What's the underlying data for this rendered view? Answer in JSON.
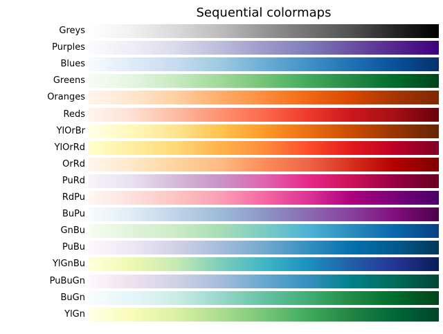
{
  "chart_data": {
    "type": "heatmap",
    "title": "Sequential colormaps",
    "colormaps": [
      {
        "name": "Greys",
        "colors": [
          "#ffffff",
          "#f0f0f0",
          "#d9d9d9",
          "#bdbdbd",
          "#969696",
          "#737373",
          "#525252",
          "#252525",
          "#000000"
        ]
      },
      {
        "name": "Purples",
        "colors": [
          "#fcfbfd",
          "#efedf5",
          "#dadaeb",
          "#bcbddc",
          "#9e9ac8",
          "#807dba",
          "#6a51a3",
          "#54278f",
          "#3f007d"
        ]
      },
      {
        "name": "Blues",
        "colors": [
          "#f7fbff",
          "#deebf7",
          "#c6dbef",
          "#9ecae1",
          "#6baed6",
          "#4292c6",
          "#2171b5",
          "#08519c",
          "#08306b"
        ]
      },
      {
        "name": "Greens",
        "colors": [
          "#f7fcf5",
          "#e5f5e0",
          "#c7e9c0",
          "#a1d99b",
          "#74c476",
          "#41ab5d",
          "#238b45",
          "#006d2c",
          "#00441b"
        ]
      },
      {
        "name": "Oranges",
        "colors": [
          "#fff5eb",
          "#fee6ce",
          "#fdd0a2",
          "#fdae6b",
          "#fd8d3c",
          "#f16913",
          "#d94801",
          "#a63603",
          "#7f2704"
        ]
      },
      {
        "name": "Reds",
        "colors": [
          "#fff5f0",
          "#fee0d2",
          "#fcbba1",
          "#fc9272",
          "#fb6a4a",
          "#ef3b2c",
          "#cb181d",
          "#a50f15",
          "#67000d"
        ]
      },
      {
        "name": "YlOrBr",
        "colors": [
          "#ffffe5",
          "#fff7bc",
          "#fee391",
          "#fec44f",
          "#fe9929",
          "#ec7014",
          "#cc4c02",
          "#993404",
          "#662506"
        ]
      },
      {
        "name": "YlOrRd",
        "colors": [
          "#ffffcc",
          "#ffeda0",
          "#fed976",
          "#feb24c",
          "#fd8d3c",
          "#fc4e2a",
          "#e31a1c",
          "#bd0026",
          "#800026"
        ]
      },
      {
        "name": "OrRd",
        "colors": [
          "#fff7ec",
          "#fee8c8",
          "#fdd49e",
          "#fdbb84",
          "#fc8d59",
          "#ef6548",
          "#d7301f",
          "#b30000",
          "#7f0000"
        ]
      },
      {
        "name": "PuRd",
        "colors": [
          "#f7f4f9",
          "#e7e1ef",
          "#d4b9da",
          "#c994c7",
          "#df65b0",
          "#e7298a",
          "#ce1256",
          "#980043",
          "#67001f"
        ]
      },
      {
        "name": "RdPu",
        "colors": [
          "#fff7f3",
          "#fde0dd",
          "#fcc5c0",
          "#fa9fb5",
          "#f768a1",
          "#dd3497",
          "#ae017e",
          "#7a0177",
          "#49006a"
        ]
      },
      {
        "name": "BuPu",
        "colors": [
          "#f7fcfd",
          "#e0ecf4",
          "#bfd3e6",
          "#9ebcda",
          "#8c96c6",
          "#8c6bb1",
          "#88419d",
          "#810f7c",
          "#4d004b"
        ]
      },
      {
        "name": "GnBu",
        "colors": [
          "#f7fcf0",
          "#e0f3db",
          "#ccebc5",
          "#a8ddb5",
          "#7bccc4",
          "#4eb3d3",
          "#2b8cbe",
          "#0868ac",
          "#084081"
        ]
      },
      {
        "name": "PuBu",
        "colors": [
          "#fff7fb",
          "#ece7f2",
          "#d0d1e6",
          "#a6bddb",
          "#74a9cf",
          "#3690c0",
          "#0570b0",
          "#045a8d",
          "#023858"
        ]
      },
      {
        "name": "YlGnBu",
        "colors": [
          "#ffffd9",
          "#edf8b1",
          "#c7e9b4",
          "#7fcdbb",
          "#41b6c4",
          "#1d91c0",
          "#225ea8",
          "#253494",
          "#081d58"
        ]
      },
      {
        "name": "PuBuGn",
        "colors": [
          "#fff7fb",
          "#ece2f0",
          "#d0d1e6",
          "#a6bddb",
          "#67a9cf",
          "#3690c0",
          "#02818a",
          "#016c59",
          "#014636"
        ]
      },
      {
        "name": "BuGn",
        "colors": [
          "#f7fcfd",
          "#e5f5f9",
          "#ccece6",
          "#99d8c9",
          "#66c2a4",
          "#41ae76",
          "#238b45",
          "#006d2c",
          "#00441b"
        ]
      },
      {
        "name": "YlGn",
        "colors": [
          "#ffffe5",
          "#f7fcb9",
          "#d9f0a3",
          "#addd8e",
          "#78c679",
          "#41ab5d",
          "#238443",
          "#006837",
          "#004529"
        ]
      }
    ]
  }
}
